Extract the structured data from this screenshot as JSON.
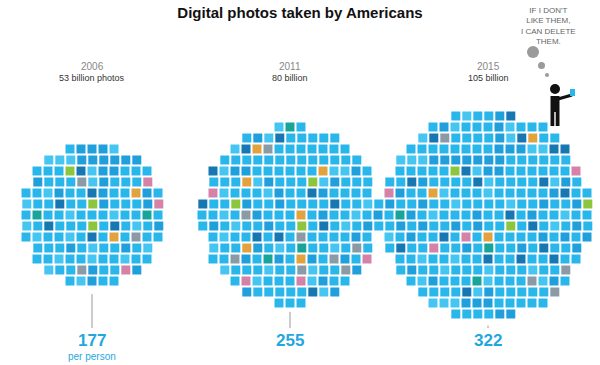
{
  "chart_data": {
    "type": "pictogram",
    "title": "Digital photos taken by Americans",
    "categories": [
      "2006",
      "2011",
      "2015"
    ],
    "values": [
      53,
      80,
      105
    ],
    "value_labels": [
      "53 billion photos",
      "80 billion",
      "105 billion"
    ],
    "per_person": [
      177,
      255,
      322
    ],
    "per_person_label": "per person",
    "annotation": [
      "IF I DON'T",
      "LIKE THEM,",
      "I CAN DELETE",
      "THEM."
    ],
    "color": "#29b6ea",
    "tick_labels": false
  }
}
